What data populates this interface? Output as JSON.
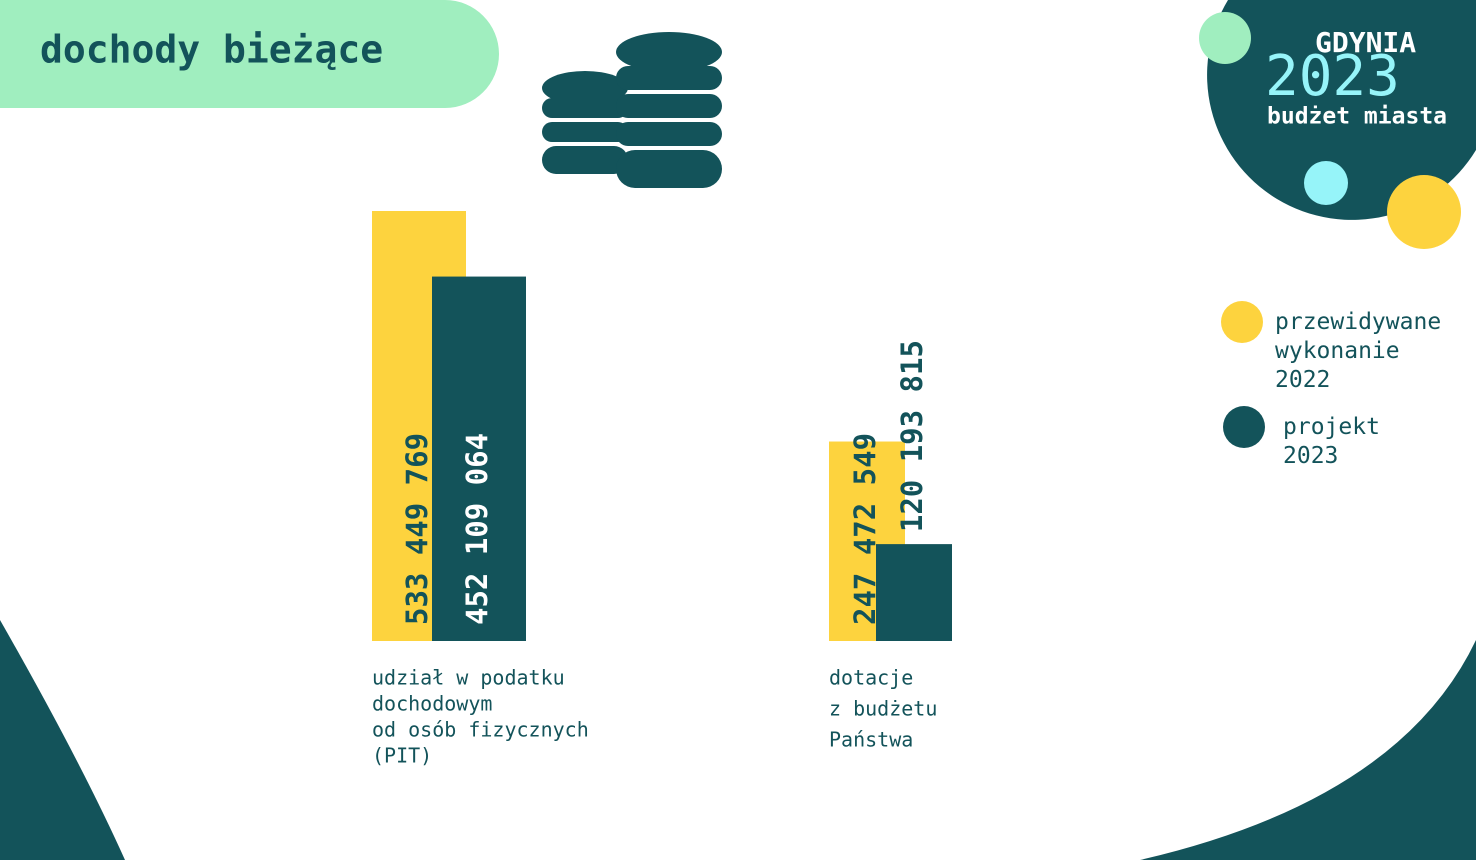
{
  "chart_data": {
    "type": "bar",
    "title": "dochody bieżące",
    "logo": {
      "city": "GDYNIA",
      "year": "2023",
      "subtitle": "budżet miasta"
    },
    "categories": [
      [
        "udział w podatku",
        "dochodowym",
        "od osób fizycznych",
        "(PIT)"
      ],
      [
        "dotacje",
        "z budżetu",
        "Państwa"
      ]
    ],
    "series": [
      {
        "name": "przewidywane wykonanie 2022",
        "color": "#fdd33e",
        "values": [
          533449769,
          247472549
        ],
        "value_labels": [
          "533 449 769",
          "247 472 549"
        ]
      },
      {
        "name": "projekt 2023",
        "color": "#13535a",
        "values": [
          452109064,
          120193815
        ],
        "value_labels": [
          "452 109 064",
          "120 193 815"
        ]
      }
    ]
  }
}
